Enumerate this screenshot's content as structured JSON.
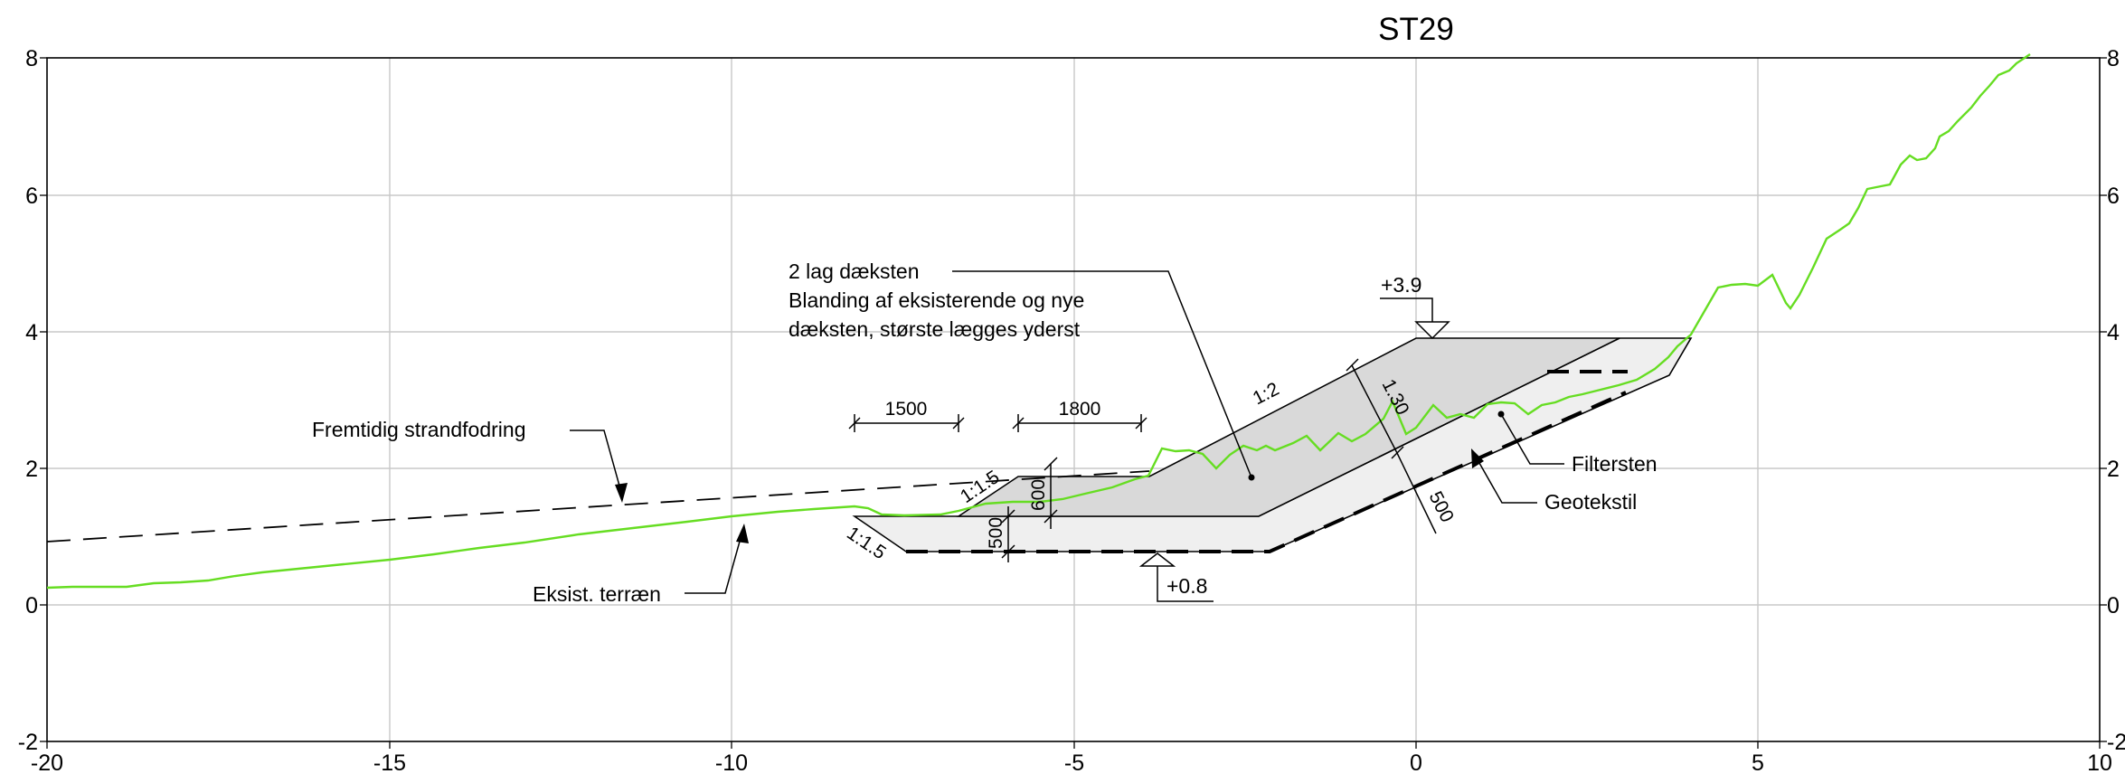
{
  "title": "ST29",
  "axes": {
    "x_ticks": [
      "-20",
      "-15",
      "-10",
      "-5",
      "0",
      "5",
      "10"
    ],
    "y_ticks": [
      "8",
      "6",
      "4",
      "2",
      "0",
      "-2"
    ]
  },
  "annotations": {
    "daeksten_line1": "2 lag dæksten",
    "daeksten_line2": "Blanding af eksisterende og nye",
    "daeksten_line3": "dæksten, største lægges yderst",
    "fremtidig": "Fremtidig strandfodring",
    "eksist": "Eksist. terræn",
    "filtersten": "Filtersten",
    "geotekstil": "Geotekstil",
    "level_top": "+3.9",
    "level_bottom": "+0.8"
  },
  "dimensions": {
    "d1500": "1500",
    "d1800": "1800",
    "slope_upper": "1:1.5",
    "slope_lower": "1:1.5",
    "d600": "600",
    "d500_left": "500",
    "slope_main": "1:2",
    "d1300": "1.30",
    "d500_right": "500"
  },
  "colors": {
    "terrain": "#66dd22",
    "armour_fill": "#d9d9d9",
    "filter_fill": "#efefef",
    "grid": "#c8c8c8"
  }
}
